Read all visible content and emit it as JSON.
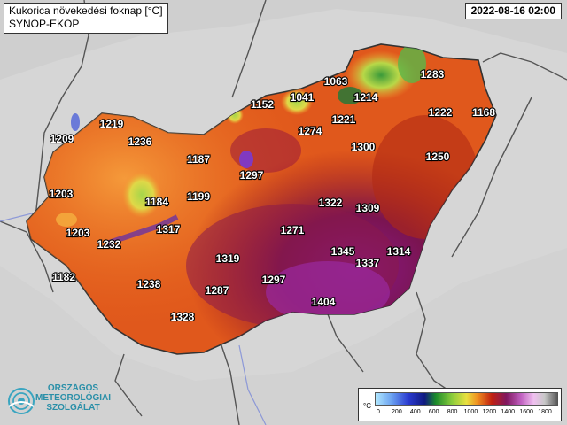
{
  "title": "Kukorica növekedési foknap [°C]",
  "subtitle": "SYNOP-EKOP",
  "datetime": "2022-08-16 02:00",
  "logo": {
    "line1": "ORSZÁGOS",
    "line2": "METEOROLÓGIAI",
    "line3": "SZOLGÁLAT",
    "icon": "omsz-logo-icon"
  },
  "legend": {
    "unit": "°C",
    "ticks": [
      "0",
      "200",
      "400",
      "600",
      "800",
      "1000",
      "1200",
      "1400",
      "1600",
      "1800"
    ],
    "colors": [
      "#9ad9f5",
      "#5a6cd8",
      "#1a1fa0",
      "#0a7a1a",
      "#7ec840",
      "#d6e04a",
      "#f07a20",
      "#a81010",
      "#7a1a8a",
      "#d070d0",
      "#f0f0f0",
      "#606060"
    ]
  },
  "stations": [
    {
      "label": "1063",
      "value": 1063
    },
    {
      "label": "1283",
      "value": 1283
    },
    {
      "label": "1041",
      "value": 1041
    },
    {
      "label": "1214",
      "value": 1214
    },
    {
      "label": "1152",
      "value": 1152
    },
    {
      "label": "1221",
      "value": 1221
    },
    {
      "label": "1222",
      "value": 1222
    },
    {
      "label": "1168",
      "value": 1168
    },
    {
      "label": "1219",
      "value": 1219
    },
    {
      "label": "1274",
      "value": 1274
    },
    {
      "label": "1209",
      "value": 1209
    },
    {
      "label": "1236",
      "value": 1236
    },
    {
      "label": "1300",
      "value": 1300
    },
    {
      "label": "1187",
      "value": 1187
    },
    {
      "label": "1250",
      "value": 1250
    },
    {
      "label": "1297",
      "value": 1297
    },
    {
      "label": "1203",
      "value": 1203
    },
    {
      "label": "1199",
      "value": 1199
    },
    {
      "label": "1184",
      "value": 1184
    },
    {
      "label": "1322",
      "value": 1322
    },
    {
      "label": "1309",
      "value": 1309
    },
    {
      "label": "1317",
      "value": 1317
    },
    {
      "label": "1203",
      "value": 1203
    },
    {
      "label": "1271",
      "value": 1271
    },
    {
      "label": "1232",
      "value": 1232
    },
    {
      "label": "1345",
      "value": 1345
    },
    {
      "label": "1314",
      "value": 1314
    },
    {
      "label": "1319",
      "value": 1319
    },
    {
      "label": "1337",
      "value": 1337
    },
    {
      "label": "1182",
      "value": 1182
    },
    {
      "label": "1297",
      "value": 1297
    },
    {
      "label": "1238",
      "value": 1238
    },
    {
      "label": "1287",
      "value": 1287
    },
    {
      "label": "1404",
      "value": 1404
    },
    {
      "label": "1328",
      "value": 1328
    }
  ]
}
